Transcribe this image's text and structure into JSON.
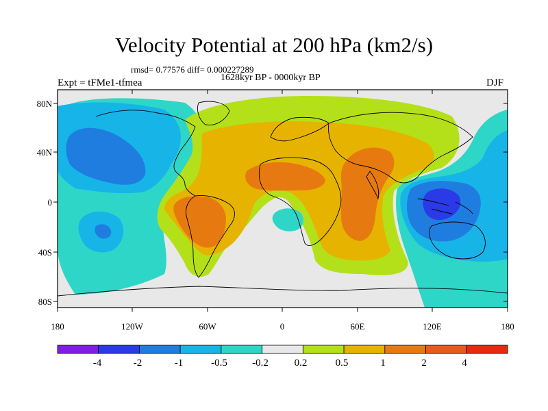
{
  "map": {
    "title": "Velocity Potential at 200 hPa (km2/s)",
    "rmsd_line": "rmsd= 0.77576 diff= 0.000227289",
    "period": "1628kyr BP - 0000kyr BP",
    "experiment": "Expt = tFMe1-tfmea",
    "season": "DJF",
    "lat_labels": [
      "80N",
      "40N",
      "0",
      "40S",
      "80S"
    ],
    "lon_labels": [
      "180",
      "120W",
      "60W",
      "0",
      "60E",
      "120E",
      "180"
    ],
    "colors": {
      "neg4": "#7f1de6",
      "neg3": "#2a3ae6",
      "neg2": "#1f7de0",
      "neg1": "#17b4e8",
      "neg05": "#2ed6c8",
      "zero": "#e8e8e8",
      "pos02": "#b4e01a",
      "pos05": "#e6b400",
      "pos1": "#e67a10",
      "pos2": "#e65a1e",
      "pos4": "#e62a10"
    }
  },
  "colorbar": {
    "labels": [
      "-4",
      "-2",
      "-1",
      "-0.5",
      "-0.2",
      "0.2",
      "0.5",
      "1",
      "2",
      "4"
    ],
    "swatches": [
      "#7f1de6",
      "#2a3ae6",
      "#1f7de0",
      "#17b4e8",
      "#2ed6c8",
      "#e8e8e8",
      "#b4e01a",
      "#e6b400",
      "#e67a10",
      "#e65a1e",
      "#e62a10"
    ]
  }
}
